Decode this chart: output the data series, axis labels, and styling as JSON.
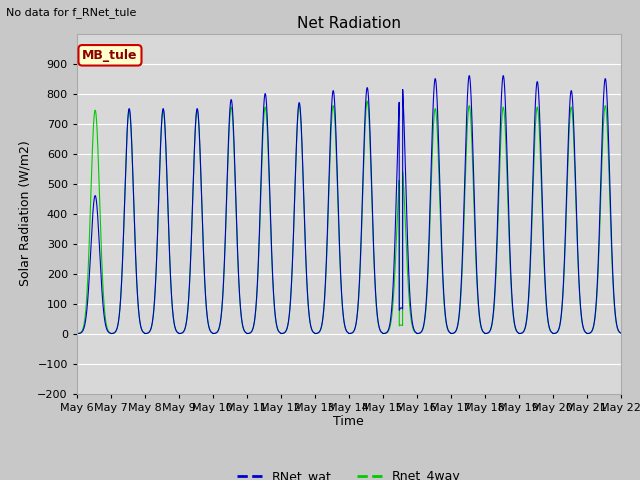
{
  "title": "Net Radiation",
  "ylabel": "Solar Radiation (W/m2)",
  "xlabel": "Time",
  "ylim": [
    -200,
    1000
  ],
  "yticks": [
    -200,
    -100,
    0,
    100,
    200,
    300,
    400,
    500,
    600,
    700,
    800,
    900
  ],
  "fig_bg_color": "#c8c8c8",
  "plot_bg_color": "#d8d8d8",
  "grid_color": "#ffffff",
  "top_left_text": "No data for f_RNet_tule",
  "legend_box_text": "MB_tule",
  "legend_box_color": "#ffffcc",
  "legend_box_border": "#cc0000",
  "line_blue": "#0000cc",
  "line_green": "#00cc00",
  "n_days": 16,
  "start_day": 6,
  "peak_blue": [
    460,
    750,
    750,
    750,
    780,
    800,
    770,
    810,
    820,
    860,
    850,
    860,
    860,
    840,
    810,
    850
  ],
  "peak_green": [
    745,
    745,
    745,
    745,
    755,
    755,
    760,
    760,
    775,
    570,
    750,
    760,
    755,
    755,
    755,
    760
  ],
  "night_blue": -90,
  "night_green": -100,
  "special_day_idx": 9
}
